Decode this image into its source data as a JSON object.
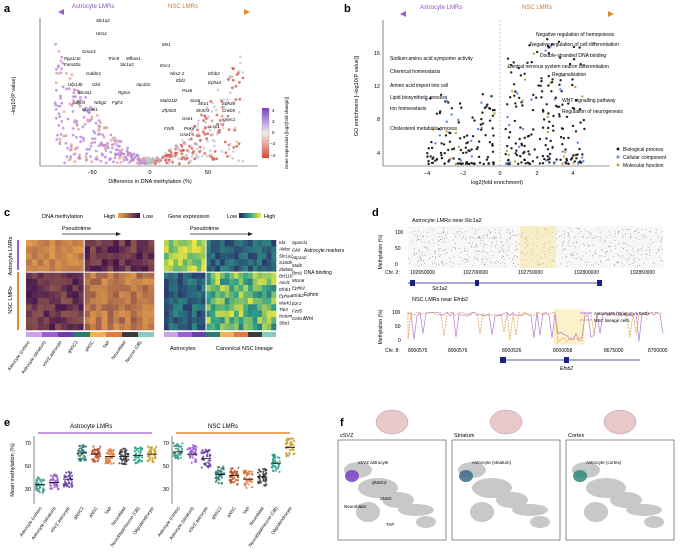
{
  "figure": {
    "panels": {
      "a": {
        "letter": "a",
        "header_left": "Astrocyte LMRs",
        "header_right": "NSC LMRs",
        "ylabel": "−log10(P value)",
        "xlabel": "Difference in DNA methylation (%)",
        "xticks": [
          "−50",
          "0",
          "50"
        ],
        "colorbar_title": "Gene expression [log2(fold change)]",
        "colorbar_ticks": [
          "4",
          "2",
          "0",
          "−2",
          "−4"
        ],
        "genes_left": [
          "Slc1a2",
          "Htra1",
          "Gria13",
          "Ppp1r3c",
          "Fam20a",
          "Trim9",
          "Mfhas1",
          "Slc1a2",
          "Gabbr1",
          "Ufp14b",
          "Glul",
          "Atp1b2",
          "Slc4a1",
          "Rgma",
          "Adgrl3",
          "Ndrg2",
          "Fgfr3",
          "Numel1"
        ],
        "genes_right": [
          "Mn1",
          "Enc1",
          "Nkx2-2",
          "Efnb2",
          "Ebf1",
          "Epha4",
          "Pax6",
          "Mab21l2",
          "Sox6",
          "Sfrp1",
          "Epha4",
          "Zfp503",
          "Sh3rf3",
          "Crwb5",
          "Gse1",
          "Igsec1",
          "Lsp1",
          "Fzd5",
          "Pnkd",
          "Gse1"
        ]
      },
      "b": {
        "letter": "b",
        "header_left": "Astrocyte LMRs",
        "header_right": "NSC LMRs",
        "ylabel": "GO enrichment [−log10(P value)]",
        "xlabel": "log2(fold enrichment)",
        "xticks": [
          "−4",
          "−2",
          "0",
          "2",
          "4"
        ],
        "yticks": [
          "4",
          "8",
          "12",
          "16"
        ],
        "terms_left": [
          "Sodium:amino acid symporter activity",
          "Chemical homeostasis",
          "Amino acid import into cell",
          "Lipid biosynthetic process",
          "Ion homeostasis",
          "Cholesterol metabolic process"
        ],
        "terms_right": [
          "Negative regulation of hemopoiesis",
          "Negative regulation of cell differentiation",
          "Double-stranded DNA binding",
          "Central nervous system neuron differentiation",
          "Regionalization",
          "WNT signalling pathway",
          "Regulation of neurogenesis"
        ],
        "legend": [
          "Biological process",
          "Cellular component",
          "Molecular function"
        ]
      },
      "c": {
        "letter": "c",
        "dna_title": "DNA methylation",
        "expr_title": "Gene expression",
        "high": "High",
        "low": "Low",
        "pseudotime": "Pseudotime",
        "row_groups": [
          "Astrocyte LMRs",
          "NSC LMRs"
        ],
        "genes": [
          "Id3",
          "Aldoc",
          "Slc1a2",
          "S100b",
          "Zbtb8a",
          "Bcl11b",
          "Ascl1",
          "Efnb1",
          "Epha4",
          "Mark1",
          "Tle3",
          "Notum",
          "Sfrp1"
        ],
        "genes2": [
          "Sparcl1",
          "Glul",
          "Atp1a2",
          "Mafb",
          "Bmi1",
          "Mcm6",
          "Ephb2",
          "Efnb2",
          "Ezr1",
          "Fzd5",
          "Celsr1"
        ],
        "categories": [
          "Astrocyte markers",
          "DNA binding",
          "Ephrin",
          "Wnt"
        ],
        "cell_types": [
          "Astrocyte (cortex)",
          "Astrocyte (striatum)",
          "vSVZ astrocyte",
          "qNSC2",
          "aNSC",
          "TAP",
          "Neuroblast",
          "Neuron (OB)"
        ],
        "bottom_left": "Astrocytes",
        "bottom_right": "Canonical NSC lineage"
      },
      "d": {
        "letter": "d",
        "top_title": "Astrocyte LMRs near Slc1a2",
        "top_ylabel": "Methylation (%)",
        "top_chr": "Chr. 2:",
        "top_ticks": [
          "102650000",
          "102700000",
          "102750000",
          "102800000",
          "102850000"
        ],
        "top_yticks": [
          "100",
          "50",
          "0"
        ],
        "top_gene": "Slc1a2",
        "bottom_title": "NSC LMRs near Efnb2",
        "bottom_ylabel": "Methylation (%)",
        "bottom_chr": "Chr. 8:",
        "bottom_ticks": [
          "8000575",
          "8000576",
          "8000526",
          "8000058",
          "8675000",
          "8700000"
        ],
        "bottom_yticks": [
          "100",
          "50",
          "0"
        ],
        "bottom_gene": "Efnb2",
        "legend": [
          "Astrocytes (striatum, vSVZ)",
          "NSC lineage cells"
        ]
      },
      "e": {
        "letter": "e",
        "left_title": "Astrocyte LMRs",
        "right_title": "NSC LMRs",
        "ylabel": "Mean methylation (%)",
        "yticks": [
          "70",
          "50",
          "30"
        ],
        "categories": [
          "Astrocyte (cortex)",
          "Astrocyte (striatum)",
          "vSVZ astrocyte",
          "qNSC2",
          "aNSC",
          "TAP",
          "Neuroblast",
          "Neuroblast/neuron (OB)",
          "Oligodendrocyte"
        ]
      },
      "f": {
        "letter": "f",
        "maps": [
          {
            "title": "vSVZ",
            "annotation": "vSVZ astrocyte",
            "extra": [
              "qNSC2",
              "aNSC",
              "Neuroblast",
              "TAP"
            ]
          },
          {
            "title": "Striatum",
            "annotation": "Astrocyte (striatum)",
            "extra": []
          },
          {
            "title": "Cortex",
            "annotation": "Astrocyte (cortex)",
            "extra": []
          }
        ]
      }
    }
  },
  "colors": {
    "astro": "#b07ad6",
    "nsc": "#e0963a",
    "heat_low": "#3a0f4f",
    "heat_high": "#f4a94a"
  }
}
